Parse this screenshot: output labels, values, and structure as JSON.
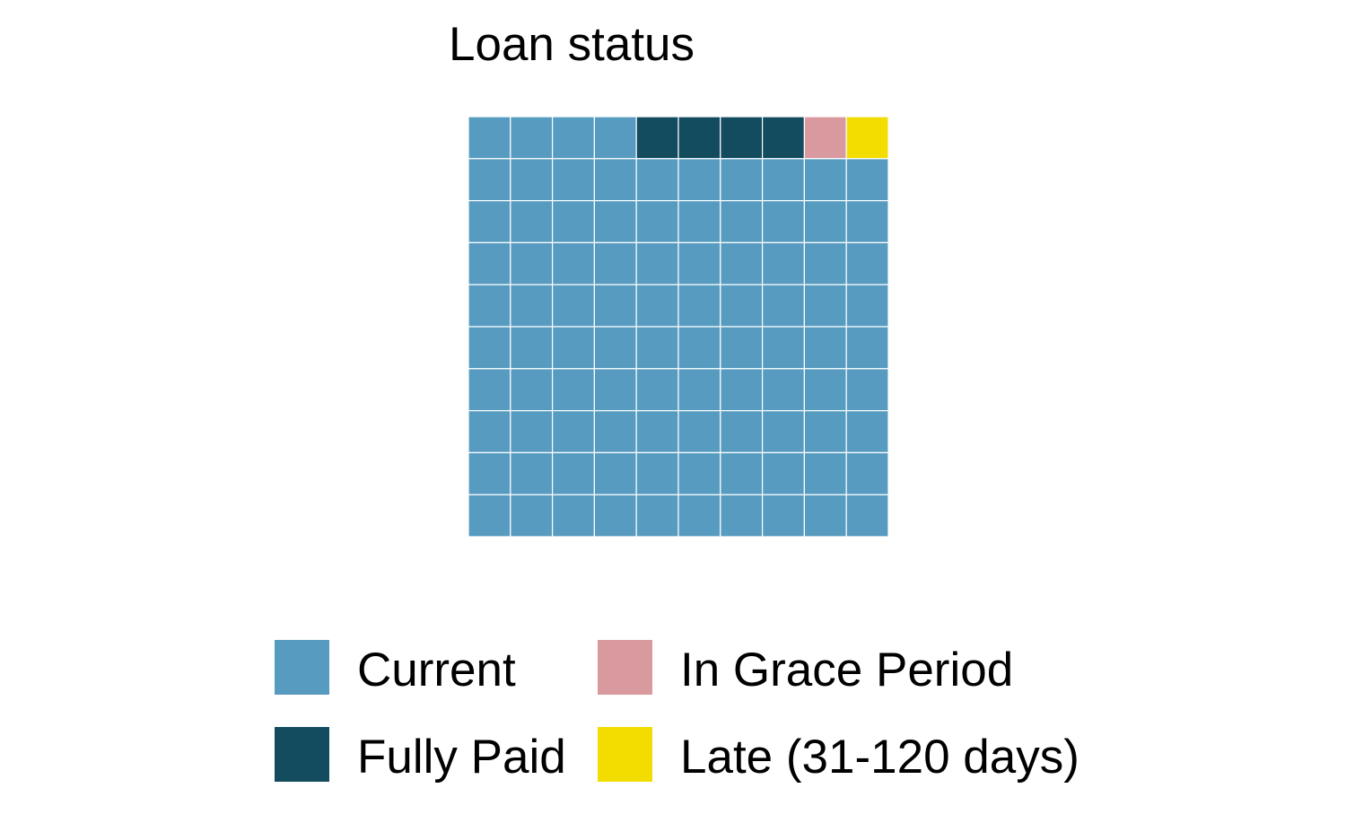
{
  "chart_data": {
    "type": "waffle",
    "title": "Loan status",
    "grid": {
      "rows": 10,
      "cols": 10
    },
    "categories": [
      "Current",
      "Fully Paid",
      "In Grace Period",
      "Late (31-120 days)"
    ],
    "values": [
      94,
      4,
      1,
      1
    ],
    "colors": [
      "#579cc0",
      "#134b5f",
      "#d99a9f",
      "#f3dd00"
    ],
    "legend": {
      "position": "bottom",
      "items": [
        {
          "label": "Current",
          "color": "#579cc0"
        },
        {
          "label": "In Grace Period",
          "color": "#d99a9f"
        },
        {
          "label": "Fully Paid",
          "color": "#134b5f"
        },
        {
          "label": "Late (31-120 days)",
          "color": "#f3dd00"
        }
      ]
    }
  }
}
